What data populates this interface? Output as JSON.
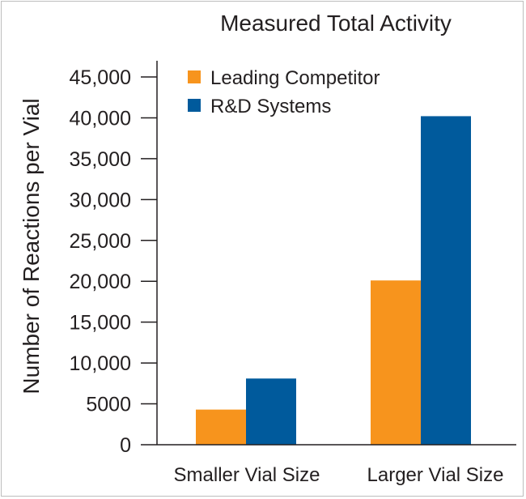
{
  "chart_data": {
    "type": "bar",
    "title": "Measured Total Activity",
    "xlabel": "",
    "ylabel": "Number of Reactions per Vial",
    "categories": [
      "Smaller Vial Size",
      "Larger Vial Size"
    ],
    "series": [
      {
        "name": "Leading Competitor",
        "color": "#f7941d",
        "values": [
          4300,
          20100
        ]
      },
      {
        "name": "R&D Systems",
        "color": "#005a9c",
        "values": [
          8100,
          40200
        ]
      }
    ],
    "ylim": [
      0,
      45000
    ],
    "yticks": [
      0,
      5000,
      10000,
      15000,
      20000,
      25000,
      30000,
      35000,
      40000,
      45000
    ],
    "ytick_labels": [
      "0",
      "5000",
      "10,000",
      "15,000",
      "20,000",
      "25,000",
      "30,000",
      "35,000",
      "40,000",
      "45,000"
    ],
    "legend_position": "top-left",
    "grid": false
  }
}
